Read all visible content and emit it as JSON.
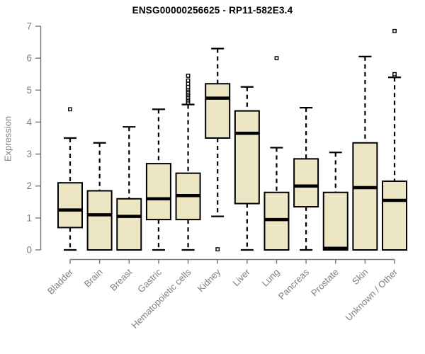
{
  "chart_data": {
    "type": "boxplot",
    "title": "ENSG00000256625 - RP11-582E3.4",
    "ylabel": "Expression",
    "xlabel": "",
    "ylim": [
      0,
      7
    ],
    "yticks": [
      0,
      1,
      2,
      3,
      4,
      5,
      6,
      7
    ],
    "grid": false,
    "legend": false,
    "categories": [
      "Bladder",
      "Brain",
      "Breast",
      "Gastric",
      "Hematopoietic cells",
      "Kidney",
      "Liver",
      "Lung",
      "Pancreas",
      "Prostate",
      "Skin",
      "Unknown / Other"
    ],
    "series": [
      {
        "name": "Bladder",
        "whisker_low": 0,
        "q1": 0.7,
        "median": 1.25,
        "q3": 2.1,
        "whisker_high": 3.5,
        "outliers": [
          4.4
        ]
      },
      {
        "name": "Brain",
        "whisker_low": 0,
        "q1": 0,
        "median": 1.1,
        "q3": 1.85,
        "whisker_high": 3.35,
        "outliers": []
      },
      {
        "name": "Breast",
        "whisker_low": 0,
        "q1": 0,
        "median": 1.05,
        "q3": 1.6,
        "whisker_high": 3.85,
        "outliers": []
      },
      {
        "name": "Gastric",
        "whisker_low": 0,
        "q1": 0.95,
        "median": 1.6,
        "q3": 2.7,
        "whisker_high": 4.4,
        "outliers": []
      },
      {
        "name": "Hematopoietic cells",
        "whisker_low": 0,
        "q1": 0.95,
        "median": 1.7,
        "q3": 2.4,
        "whisker_high": 4.55,
        "outliers": [
          4.6,
          4.65,
          4.7,
          4.75,
          4.8,
          4.85,
          4.9,
          4.95,
          5.0,
          5.05,
          5.1,
          5.2,
          5.3,
          5.45
        ]
      },
      {
        "name": "Kidney",
        "whisker_low": 1.05,
        "q1": 3.5,
        "median": 4.75,
        "q3": 5.2,
        "whisker_high": 6.3,
        "outliers": [
          0.02
        ]
      },
      {
        "name": "Liver",
        "whisker_low": 0,
        "q1": 1.45,
        "median": 3.65,
        "q3": 4.35,
        "whisker_high": 5.1,
        "outliers": []
      },
      {
        "name": "Lung",
        "whisker_low": 0,
        "q1": 0,
        "median": 0.95,
        "q3": 1.8,
        "whisker_high": 3.2,
        "outliers": [
          6.0
        ]
      },
      {
        "name": "Pancreas",
        "whisker_low": 0,
        "q1": 1.35,
        "median": 2.0,
        "q3": 2.85,
        "whisker_high": 4.45,
        "outliers": []
      },
      {
        "name": "Prostate",
        "whisker_low": 0,
        "q1": 0,
        "median": 0.05,
        "q3": 1.8,
        "whisker_high": 3.05,
        "outliers": []
      },
      {
        "name": "Skin",
        "whisker_low": 0,
        "q1": 0,
        "median": 1.95,
        "q3": 3.35,
        "whisker_high": 6.05,
        "outliers": []
      },
      {
        "name": "Unknown / Other",
        "whisker_low": 0,
        "q1": 0,
        "median": 1.55,
        "q3": 2.15,
        "whisker_high": 5.4,
        "outliers": [
          5.45,
          5.5,
          6.85
        ]
      }
    ],
    "colors": {
      "box_fill": "#EDE6C4",
      "box_border": "#000000",
      "median": "#000000",
      "whisker": "#000000",
      "axis": "#7F7F7F",
      "tick_label": "#7F7F7F",
      "title": "#000000",
      "background": "#FFFFFF"
    }
  }
}
